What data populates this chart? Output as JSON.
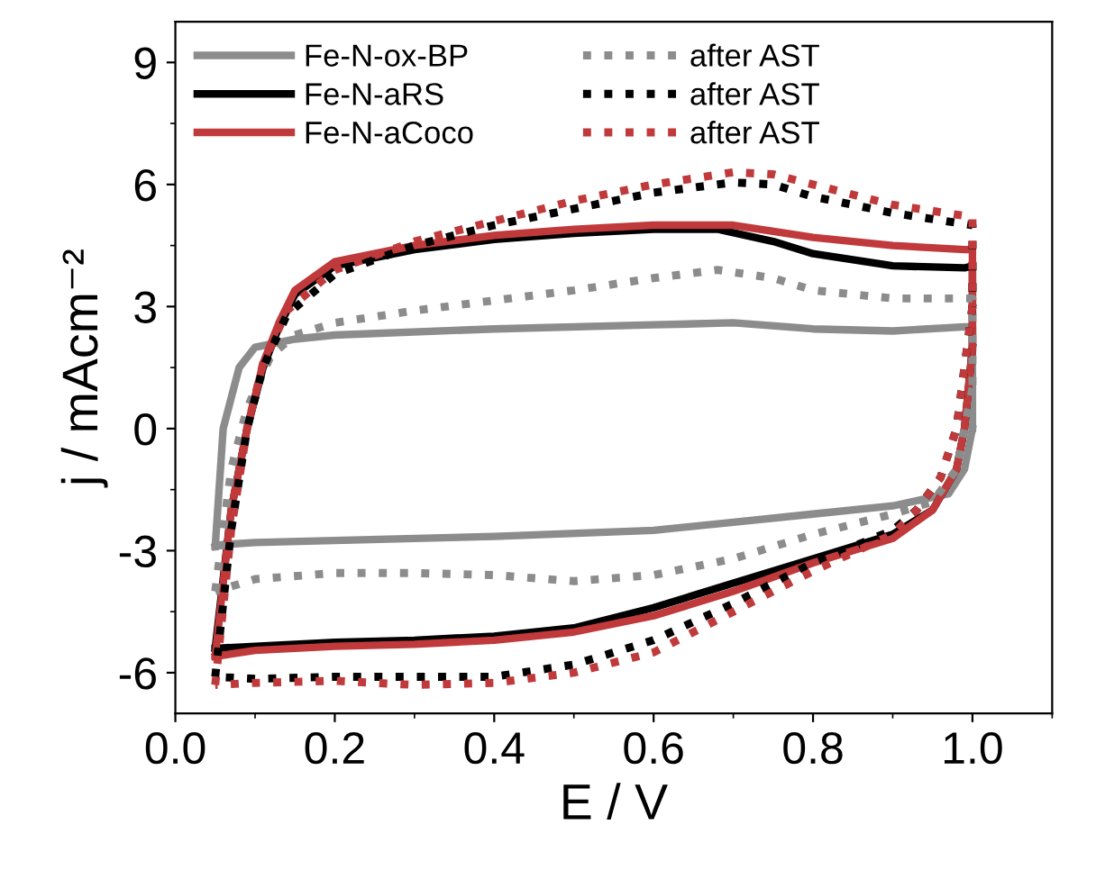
{
  "chart_data": {
    "type": "line",
    "xlabel": "E / V",
    "ylabel": "j / mAcm⁻²",
    "xlim": [
      0,
      1.1
    ],
    "ylim": [
      -7,
      10
    ],
    "xticks": [
      {
        "value": 0,
        "label": "0.0"
      },
      0.2,
      0.4,
      0.6,
      0.8,
      {
        "value": 1,
        "label": "1.0"
      }
    ],
    "yticks": [
      -6,
      -3,
      0,
      3,
      6,
      9
    ],
    "grid": false,
    "legend": "top left",
    "marker": "none",
    "series": [
      {
        "name": "Fe-N-ox-BP",
        "color": "#8c8c8c",
        "line_style": "solid",
        "x": [
          0.05,
          0.06,
          0.08,
          0.1,
          0.15,
          0.2,
          0.4,
          0.6,
          0.7,
          0.8,
          0.9,
          0.99,
          1.0,
          1.0,
          0.99,
          0.97,
          0.9,
          0.8,
          0.7,
          0.6,
          0.4,
          0.2,
          0.1,
          0.06,
          0.05
        ],
        "values": [
          -2.9,
          0,
          1.5,
          2.0,
          2.2,
          2.3,
          2.45,
          2.55,
          2.6,
          2.45,
          2.4,
          2.5,
          2.5,
          0,
          -1.0,
          -1.6,
          -1.9,
          -2.1,
          -2.3,
          -2.5,
          -2.65,
          -2.75,
          -2.8,
          -2.85,
          -2.9
        ]
      },
      {
        "name": "Fe-N-aRS",
        "color": "#000000",
        "line_style": "solid",
        "x": [
          0.05,
          0.07,
          0.09,
          0.11,
          0.13,
          0.15,
          0.2,
          0.3,
          0.4,
          0.5,
          0.6,
          0.68,
          0.75,
          0.8,
          0.9,
          0.99,
          1.0,
          1.0,
          0.99,
          0.98,
          0.95,
          0.9,
          0.8,
          0.7,
          0.6,
          0.5,
          0.4,
          0.3,
          0.2,
          0.1,
          0.05
        ],
        "values": [
          -5.4,
          -2,
          0,
          1.5,
          2.5,
          3.3,
          4.0,
          4.4,
          4.65,
          4.8,
          4.9,
          4.9,
          4.6,
          4.3,
          4.0,
          3.95,
          4.0,
          2,
          0,
          -1.0,
          -2.0,
          -2.6,
          -3.2,
          -3.8,
          -4.4,
          -4.9,
          -5.1,
          -5.2,
          -5.25,
          -5.35,
          -5.4
        ]
      },
      {
        "name": "Fe-N-aCoco",
        "color": "#c0393b",
        "line_style": "solid",
        "x": [
          0.05,
          0.07,
          0.09,
          0.11,
          0.13,
          0.15,
          0.2,
          0.3,
          0.4,
          0.5,
          0.6,
          0.7,
          0.8,
          0.9,
          0.99,
          1.0,
          1.0,
          0.99,
          0.98,
          0.95,
          0.9,
          0.8,
          0.7,
          0.6,
          0.5,
          0.4,
          0.3,
          0.2,
          0.1,
          0.05
        ],
        "values": [
          -5.6,
          -2,
          0,
          1.6,
          2.6,
          3.4,
          4.1,
          4.5,
          4.75,
          4.9,
          5.0,
          5.0,
          4.7,
          4.5,
          4.4,
          4.4,
          2,
          0,
          -1.0,
          -2.0,
          -2.7,
          -3.3,
          -4.0,
          -4.6,
          -5.0,
          -5.2,
          -5.3,
          -5.35,
          -5.45,
          -5.6
        ]
      },
      {
        "name": "after AST",
        "color": "#8c8c8c",
        "line_style": "dotted",
        "x": [
          0.05,
          0.07,
          0.09,
          0.12,
          0.15,
          0.2,
          0.3,
          0.4,
          0.5,
          0.6,
          0.68,
          0.75,
          0.8,
          0.9,
          1.0,
          1.0,
          0.99,
          0.98,
          0.95,
          0.9,
          0.8,
          0.7,
          0.6,
          0.5,
          0.4,
          0.3,
          0.2,
          0.1,
          0.05
        ],
        "values": [
          -4,
          -1,
          0.5,
          1.8,
          2.3,
          2.6,
          2.9,
          3.15,
          3.4,
          3.7,
          3.9,
          3.7,
          3.4,
          3.2,
          3.2,
          1,
          0,
          -1,
          -1.8,
          -2.1,
          -2.6,
          -3.2,
          -3.6,
          -3.75,
          -3.6,
          -3.55,
          -3.55,
          -3.7,
          -4
        ]
      },
      {
        "name": "after AST",
        "color": "#000000",
        "line_style": "dotted",
        "x": [
          0.05,
          0.07,
          0.09,
          0.11,
          0.14,
          0.2,
          0.3,
          0.4,
          0.5,
          0.6,
          0.7,
          0.75,
          0.8,
          0.9,
          1.0,
          1.0,
          0.98,
          0.96,
          0.93,
          0.9,
          0.8,
          0.7,
          0.6,
          0.5,
          0.4,
          0.3,
          0.2,
          0.1,
          0.05
        ],
        "values": [
          -6.1,
          -2.5,
          0,
          1.5,
          2.8,
          3.8,
          4.5,
          5.0,
          5.4,
          5.8,
          6.05,
          6.0,
          5.7,
          5.3,
          5.0,
          3,
          0,
          -1.2,
          -2.0,
          -2.5,
          -3.3,
          -4.3,
          -5.2,
          -5.8,
          -6.1,
          -6.1,
          -6.1,
          -6.15,
          -6.1
        ]
      },
      {
        "name": "after AST",
        "color": "#c0393b",
        "line_style": "dotted",
        "x": [
          0.05,
          0.07,
          0.09,
          0.11,
          0.14,
          0.2,
          0.3,
          0.4,
          0.5,
          0.6,
          0.7,
          0.75,
          0.8,
          0.9,
          1.0,
          1.0,
          0.98,
          0.96,
          0.93,
          0.9,
          0.8,
          0.7,
          0.6,
          0.5,
          0.4,
          0.3,
          0.2,
          0.1,
          0.05
        ],
        "values": [
          -6.3,
          -2.5,
          0,
          1.6,
          2.9,
          3.9,
          4.6,
          5.1,
          5.6,
          6.0,
          6.3,
          6.25,
          6.0,
          5.5,
          5.2,
          3,
          0,
          -1.2,
          -2.0,
          -2.6,
          -3.5,
          -4.5,
          -5.5,
          -6.0,
          -6.25,
          -6.3,
          -6.2,
          -6.25,
          -6.3
        ]
      }
    ]
  }
}
